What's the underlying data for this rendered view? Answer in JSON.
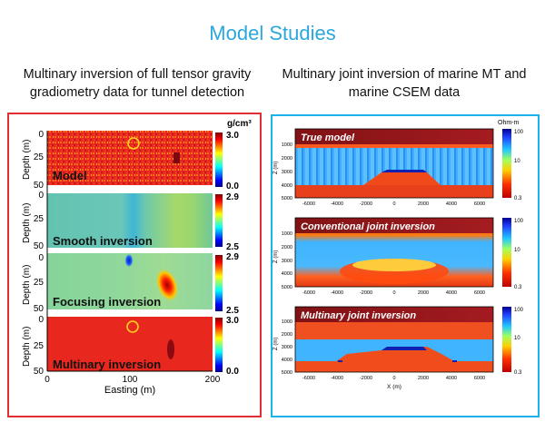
{
  "page": {
    "title": "Model Studies",
    "left_caption": "Multinary inversion of full tensor gravity gradiometry data for tunnel detection",
    "right_caption": "Multinary joint inversion of marine MT and marine CSEM data"
  },
  "left_panel": {
    "unit": "g/cm³",
    "y_axis_label": "Depth (m)",
    "x_axis_label": "Easting (m)",
    "x_ticks": [
      "0",
      "100",
      "200"
    ],
    "y_ticks": [
      "0",
      "25",
      "50"
    ],
    "panels": [
      {
        "label": "Model",
        "cb_max": "3.0",
        "cb_min": "0.0"
      },
      {
        "label": "Smooth inversion",
        "cb_max": "2.9",
        "cb_min": "2.5"
      },
      {
        "label": "Focusing inversion",
        "cb_max": "2.9",
        "cb_min": "2.5"
      },
      {
        "label": "Multinary inversion",
        "cb_max": "3.0",
        "cb_min": "0.0"
      }
    ]
  },
  "right_panel": {
    "unit": "Ohm-m",
    "y_axis_label": "Z (m)",
    "x_axis_label": "X (m)",
    "x_ticks": [
      "-6000",
      "-4000",
      "-2000",
      "0",
      "2000",
      "4000",
      "6000"
    ],
    "y_ticks": [
      "1000",
      "2000",
      "3000",
      "4000",
      "5000"
    ],
    "cb_ticks": [
      "100",
      "10",
      "0.3"
    ],
    "panels": [
      {
        "label": "True model"
      },
      {
        "label": "Conventional joint inversion"
      },
      {
        "label": "Multinary joint inversion"
      }
    ]
  },
  "colors": {
    "title": "#2aa7dd",
    "left_frame": "#e03033",
    "right_frame": "#1bb3e8",
    "label_band": "#7a0e14"
  }
}
